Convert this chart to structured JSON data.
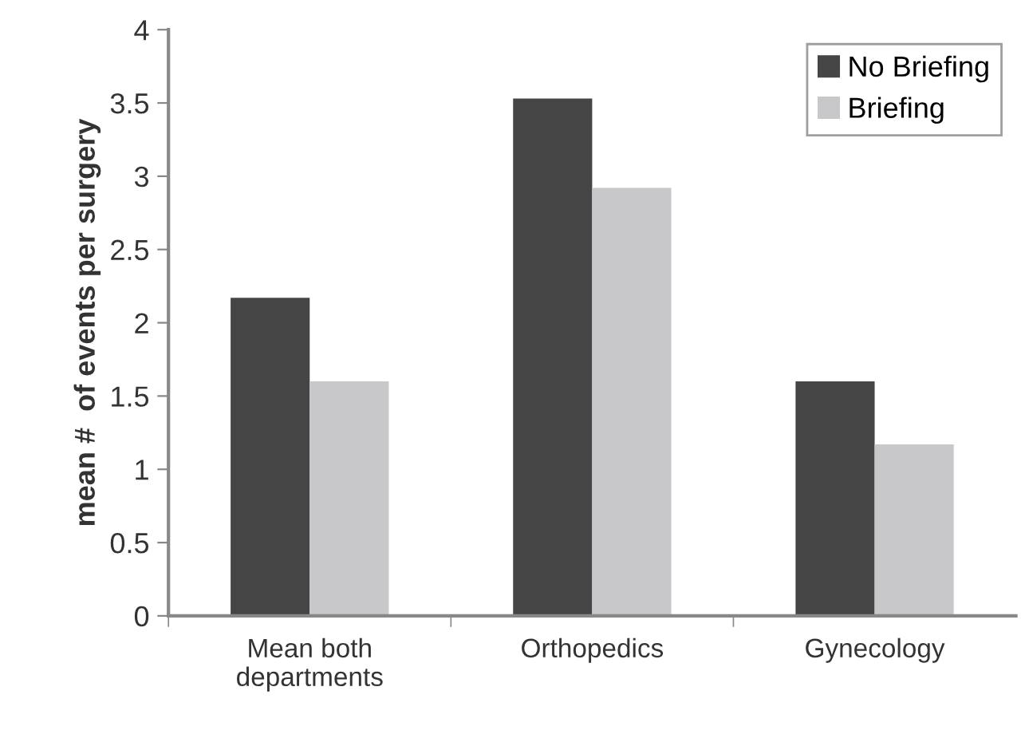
{
  "chart_data": {
    "type": "bar",
    "ylabel": "mean #  of events per surgery",
    "categories": [
      "Mean both\ndepartments",
      "Orthopedics",
      "Gynecology"
    ],
    "series": [
      {
        "name": "No Briefing",
        "color": "#454545",
        "values": [
          2.17,
          3.53,
          1.6
        ]
      },
      {
        "name": "Briefing",
        "color": "#c8c8ca",
        "values": [
          1.6,
          2.92,
          1.17
        ]
      }
    ],
    "ylim": [
      0,
      4
    ],
    "yticks": [
      0,
      0.5,
      1,
      1.5,
      2,
      2.5,
      3,
      3.5,
      4
    ],
    "grid": false,
    "legend": "top right"
  }
}
